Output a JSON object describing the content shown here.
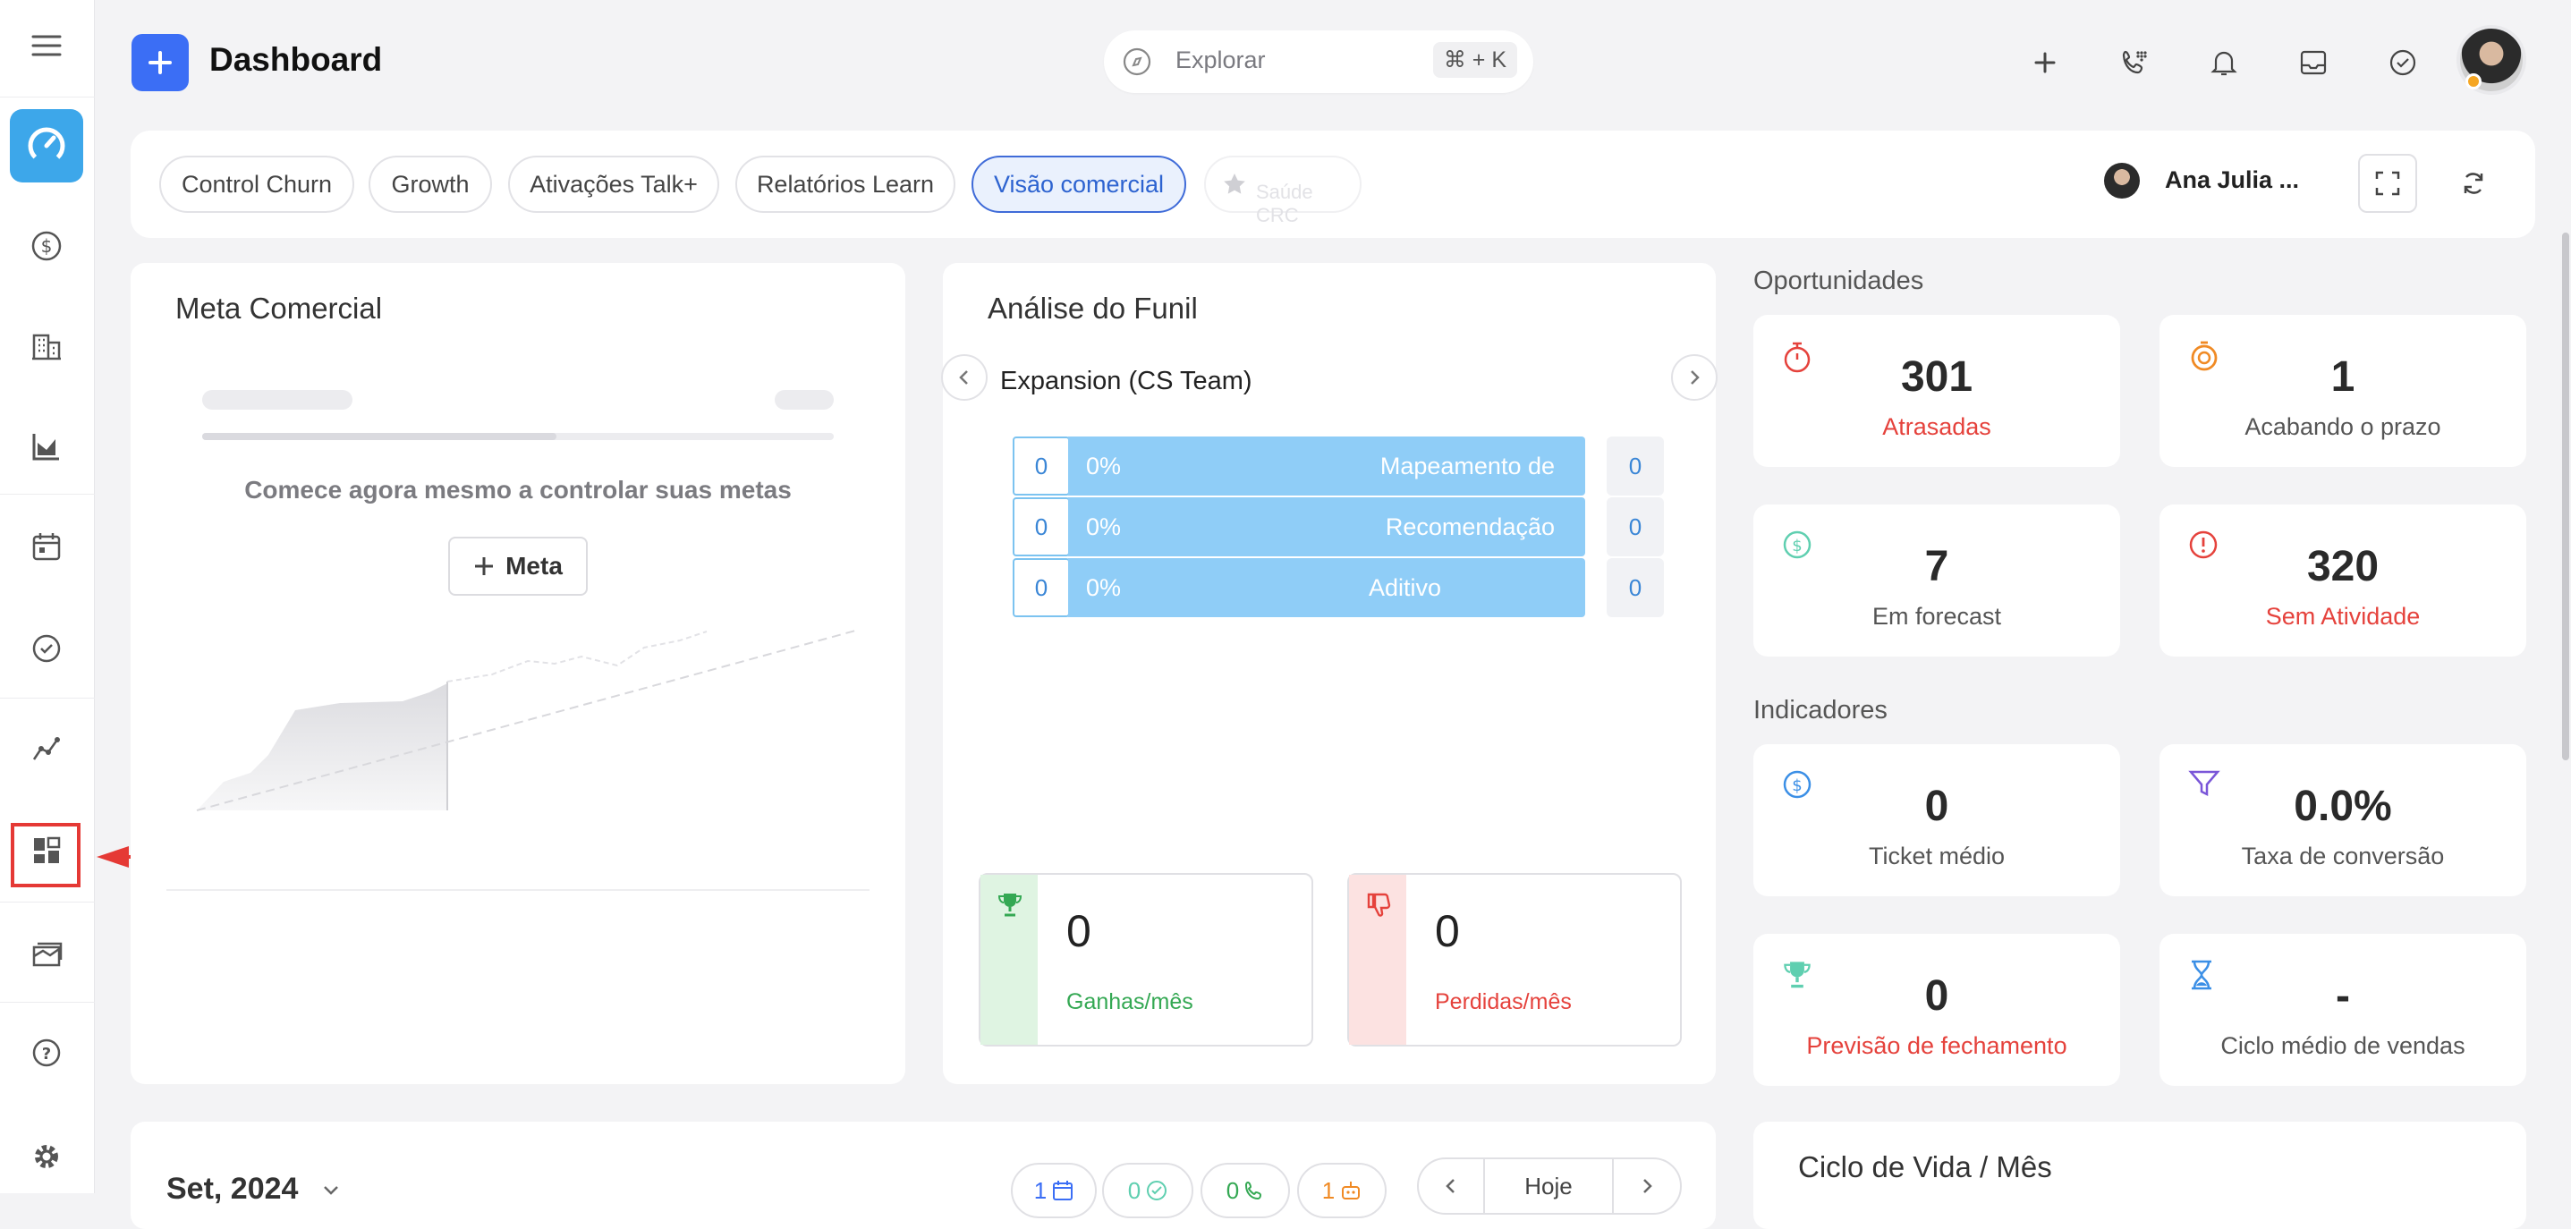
{
  "header": {
    "title": "Dashboard",
    "search_placeholder": "Explorar",
    "search_shortcut": "⌘ + K"
  },
  "tabs": [
    {
      "label": "Control Churn"
    },
    {
      "label": "Growth"
    },
    {
      "label": "Ativações Talk+"
    },
    {
      "label": "Relatórios Learn"
    },
    {
      "label": "Visão comercial",
      "active": true
    },
    {
      "label": "Saúde CRC"
    }
  ],
  "user": {
    "name": "Ana Julia ..."
  },
  "meta": {
    "title": "Meta Comercial",
    "message": "Comece agora mesmo a controlar suas metas",
    "button_label": "Meta"
  },
  "funil": {
    "title": "Análise do Funil",
    "pipeline": "Expansion (CS Team)",
    "stages": [
      {
        "count": "0",
        "pct": "0%",
        "label": "Mapeamento de",
        "end": "0"
      },
      {
        "count": "0",
        "pct": "0%",
        "label": "Recomendação",
        "end": "0"
      },
      {
        "count": "0",
        "pct": "0%",
        "label": "Aditivo",
        "end": "0"
      }
    ],
    "won": {
      "value": "0",
      "label": "Ganhas/mês"
    },
    "lost": {
      "value": "0",
      "label": "Perdidas/mês"
    }
  },
  "oportunidades": {
    "title": "Oportunidades",
    "items": [
      {
        "value": "301",
        "label": "Atrasadas",
        "icon": "stopwatch-icon"
      },
      {
        "value": "1",
        "label": "Acabando o prazo",
        "icon": "timer-icon"
      },
      {
        "value": "7",
        "label": "Em forecast",
        "icon": "dollar-icon"
      },
      {
        "value": "320",
        "label": "Sem Atividade",
        "icon": "alert-icon"
      }
    ]
  },
  "indicadores": {
    "title": "Indicadores",
    "items": [
      {
        "value": "0",
        "label": "Ticket médio",
        "icon": "dollar-icon"
      },
      {
        "value": "0.0%",
        "label": "Taxa de conversão",
        "icon": "funnel-icon"
      },
      {
        "value": "0",
        "label": "Previsão de fechamento",
        "icon": "trophy-icon"
      },
      {
        "value": "-",
        "label": "Ciclo médio de vendas",
        "icon": "hourglass-icon"
      }
    ]
  },
  "bottom": {
    "month": "Set, 2024",
    "chips": [
      "1",
      "0",
      "0",
      "1"
    ],
    "today_label": "Hoje",
    "lifecycle_title": "Ciclo de Vida / Mês"
  },
  "colors": {
    "accent": "#3b6ef5",
    "active_tab": "#2d63d0",
    "funnel_bar": "#8fcdf7",
    "red": "#e5423c",
    "green": "#34a853",
    "annotation": "#e53935"
  }
}
